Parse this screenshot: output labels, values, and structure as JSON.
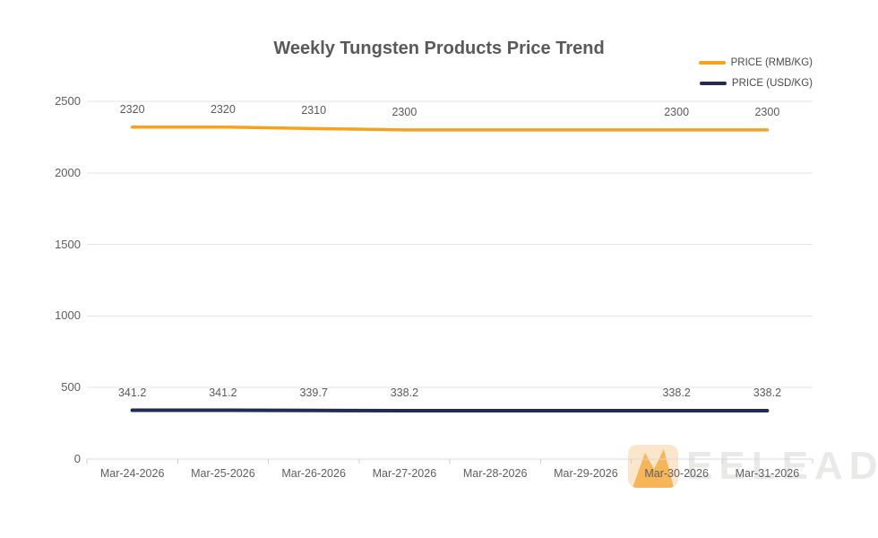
{
  "chart_data": {
    "type": "line",
    "title": "Weekly Tungsten Products Price Trend",
    "categories": [
      "Mar-24-2026",
      "Mar-25-2026",
      "Mar-26-2026",
      "Mar-27-2026",
      "Mar-28-2026",
      "Mar-29-2026",
      "Mar-30-2026",
      "Mar-31-2026"
    ],
    "series": [
      {
        "name": "PRICE (RMB/KG)",
        "color": "#F7A21F",
        "values": [
          2320,
          2320,
          2310,
          2300,
          2300,
          2300,
          2300,
          2300
        ],
        "point_labels": [
          "2320",
          "2320",
          "2310",
          "2300",
          null,
          null,
          "2300",
          "2300"
        ]
      },
      {
        "name": "PRICE (USD/KG)",
        "color": "#212B56",
        "values": [
          341.2,
          341.2,
          339.7,
          338.2,
          338.2,
          338.2,
          338.2,
          338.2
        ],
        "point_labels": [
          "341.2",
          "341.2",
          "339.7",
          "338.2",
          null,
          null,
          "338.2",
          "338.2"
        ]
      }
    ],
    "y_axis": {
      "min": 0,
      "max": 2500,
      "ticks": [
        "0",
        "500",
        "1000",
        "1500",
        "2000",
        "2500"
      ]
    },
    "xlabel": "",
    "ylabel": "",
    "grid": true,
    "legend_position": "top-right"
  },
  "watermark": {
    "text": "EELEAD",
    "tile_color": "#FBE6CB",
    "tile_accent": "#F5AB45",
    "text_color": "#E9E9E7"
  },
  "style_colors": {
    "gridline": "#E4E4E4",
    "axis_line": "#D8D8D8",
    "tick": "#CFCFCF",
    "label_text": "#595959"
  }
}
